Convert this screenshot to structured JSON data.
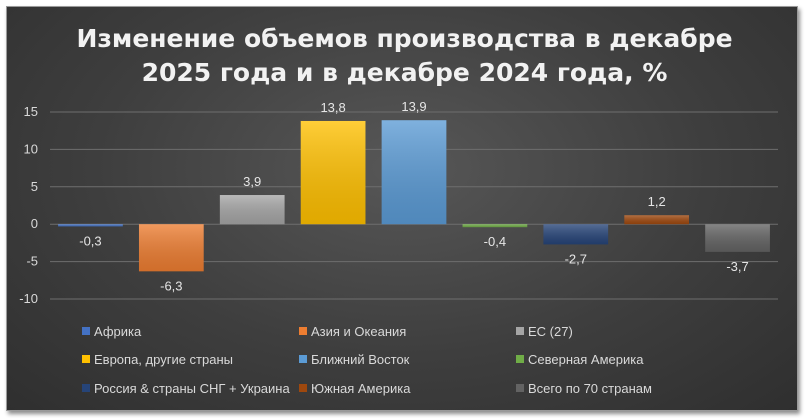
{
  "chart_data": {
    "type": "bar",
    "title": "Изменение объемов производства в декабре\n2025 года и в декабре 2024 года, %",
    "xlabel": "",
    "ylabel": "",
    "ylim": [
      -10,
      15
    ],
    "yticks": [
      15,
      10,
      5,
      0,
      -5,
      -10
    ],
    "grid": true,
    "legend_position": "bottom",
    "series": [
      {
        "name": "Африка",
        "value": -0.3,
        "label": "-0,3",
        "color": "#4472c4"
      },
      {
        "name": "Азия и Океания",
        "value": -6.3,
        "label": "-6,3",
        "color": "#ed7d31"
      },
      {
        "name": "ЕС (27)",
        "value": 3.9,
        "label": "3,9",
        "color": "#a5a5a5"
      },
      {
        "name": "Европа, другие страны",
        "value": 13.8,
        "label": "13,8",
        "color": "#ffc000"
      },
      {
        "name": "Ближний Восток",
        "value": 13.9,
        "label": "13,9",
        "color": "#5b9bd5"
      },
      {
        "name": "Северная Америка",
        "value": -0.4,
        "label": "-0,4",
        "color": "#70ad47"
      },
      {
        "name": "Россия & страны СНГ + Украина",
        "value": -2.7,
        "label": "-2,7",
        "color": "#264478"
      },
      {
        "name": "Южная Америка",
        "value": 1.2,
        "label": "1,2",
        "color": "#9e480e"
      },
      {
        "name": "Всего по 70 странам",
        "value": -3.7,
        "label": "-3,7",
        "color": "#636363"
      }
    ]
  }
}
